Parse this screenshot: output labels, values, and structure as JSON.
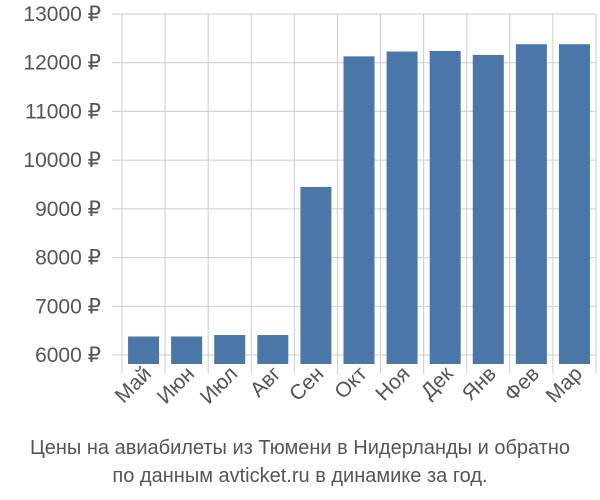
{
  "chart_data": {
    "type": "bar",
    "categories": [
      "Май",
      "Июн",
      "Июл",
      "Авг",
      "Сен",
      "Окт",
      "Ноя",
      "Дек",
      "Янв",
      "Фев",
      "Мар"
    ],
    "values": [
      6380,
      6380,
      6410,
      6410,
      9450,
      12130,
      12230,
      12240,
      12160,
      12380,
      12380
    ],
    "ylim": [
      5800,
      13000
    ],
    "yticks": [
      6000,
      7000,
      8000,
      9000,
      10000,
      11000,
      12000,
      13000
    ],
    "ytick_labels": [
      "6000 ₽",
      "7000 ₽",
      "8000 ₽",
      "9000 ₽",
      "10000 ₽",
      "11000 ₽",
      "12000 ₽",
      "13000 ₽"
    ],
    "grid": true,
    "bar_color": "#4a76a8",
    "grid_color": "#cccccc",
    "caption_lines": [
      "Цены на авиабилеты из Тюмени в Нидерланды и обратно",
      "по данным avticket.ru в динамике за год."
    ]
  }
}
